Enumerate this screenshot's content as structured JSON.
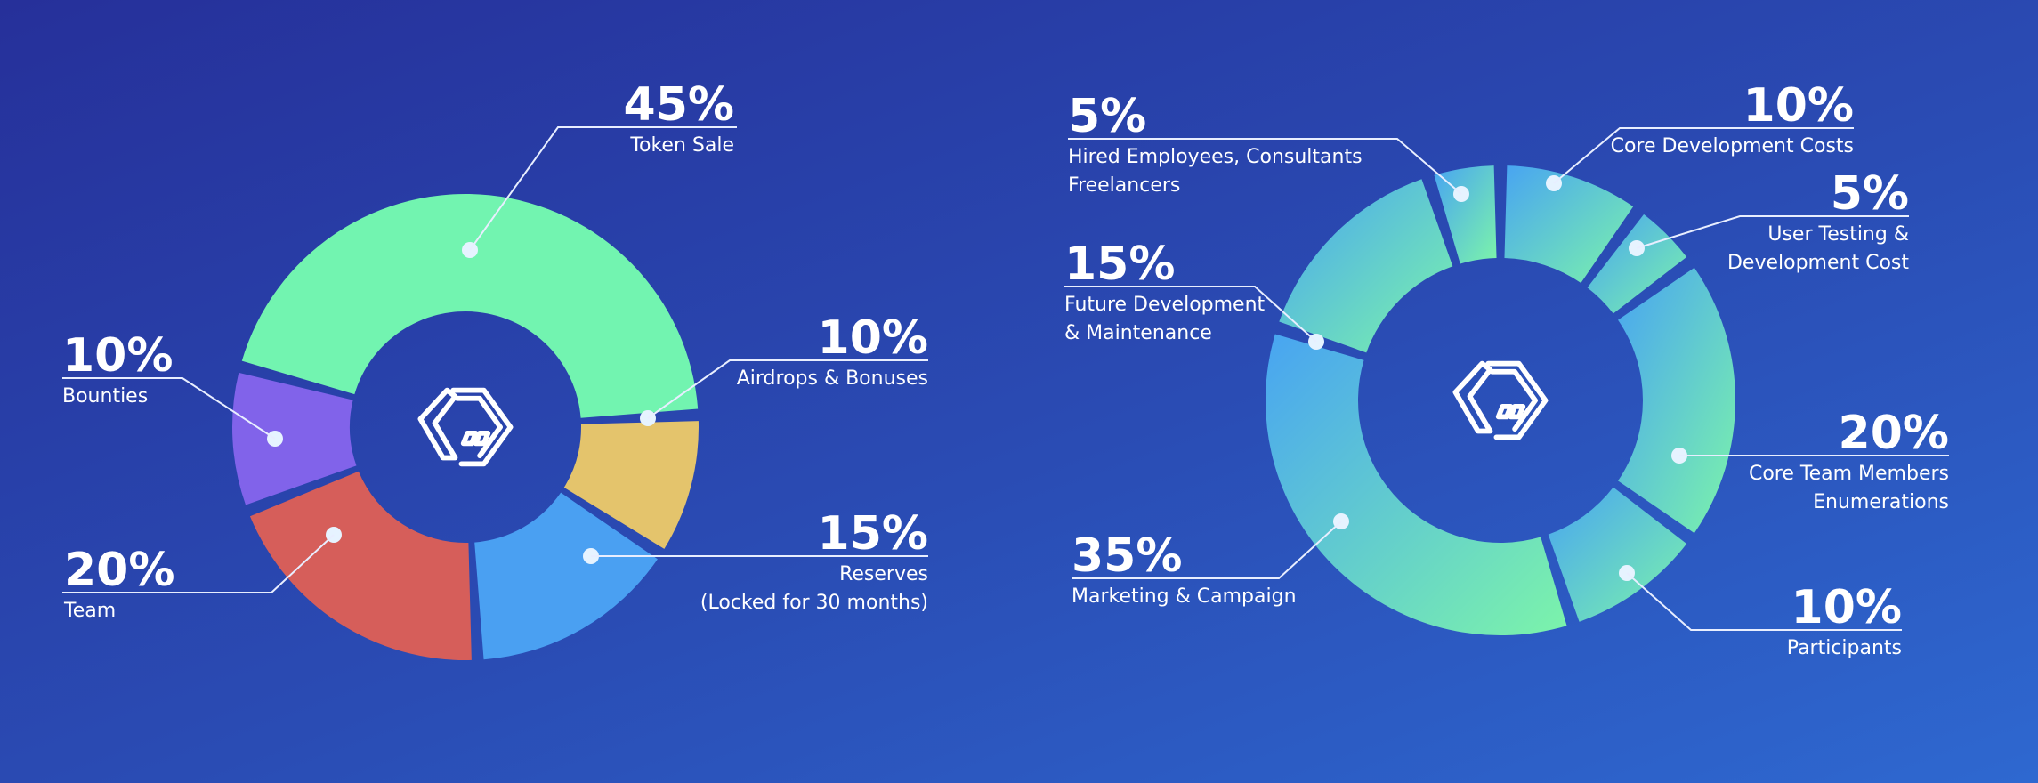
{
  "chart_data": [
    {
      "type": "donut",
      "slices": [
        {
          "id": "token-sale",
          "value": 45,
          "percent": "45%",
          "label": [
            "Token Sale"
          ],
          "color": "#72f4b0"
        },
        {
          "id": "airdrops",
          "value": 10,
          "percent": "10%",
          "label": [
            "Airdrops & Bonuses"
          ],
          "color": "#e4c46c"
        },
        {
          "id": "reserves",
          "value": 15,
          "percent": "15%",
          "label": [
            "Reserves",
            "(Locked for 30 months)"
          ],
          "color": "#4aa0f2"
        },
        {
          "id": "team",
          "value": 20,
          "percent": "20%",
          "label": [
            "Team"
          ],
          "color": "#d65e5a"
        },
        {
          "id": "bounties",
          "value": 10,
          "percent": "10%",
          "label": [
            "Bounties"
          ],
          "color": "#8163ea"
        }
      ]
    },
    {
      "type": "donut",
      "gradient": [
        "#4aa8f0",
        "#78f2ac"
      ],
      "slices": [
        {
          "id": "core-dev",
          "value": 10,
          "percent": "10%",
          "label": [
            "Core Development Costs"
          ]
        },
        {
          "id": "user-testing",
          "value": 5,
          "percent": "5%",
          "label": [
            "User Testing &",
            "Development Cost"
          ]
        },
        {
          "id": "core-team",
          "value": 20,
          "percent": "20%",
          "label": [
            "Core Team Members",
            "Enumerations"
          ]
        },
        {
          "id": "participants",
          "value": 10,
          "percent": "10%",
          "label": [
            "Participants"
          ]
        },
        {
          "id": "marketing",
          "value": 35,
          "percent": "35%",
          "label": [
            "Marketing & Campaign"
          ]
        },
        {
          "id": "future-dev",
          "value": 15,
          "percent": "15%",
          "label": [
            "Future Development",
            "& Maintenance"
          ]
        },
        {
          "id": "hired",
          "value": 5,
          "percent": "5%",
          "label": [
            "Hired Employees, Consultants",
            "Freelancers"
          ]
        }
      ]
    }
  ],
  "icons": [
    "logo-icon"
  ]
}
